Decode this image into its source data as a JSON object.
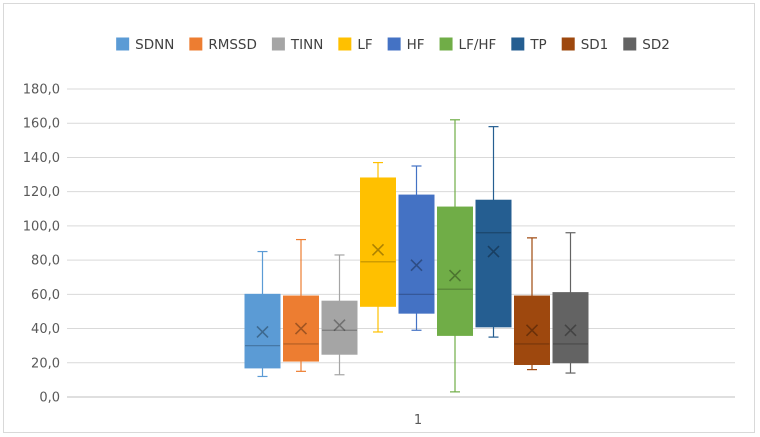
{
  "chart_data": {
    "type": "boxplot",
    "categories": [
      "1"
    ],
    "ylim": [
      0,
      180
    ],
    "ytick_step": 20,
    "ytick_labels": [
      "0,0",
      "20,0",
      "40,0",
      "60,0",
      "80,0",
      "100,0",
      "120,0",
      "140,0",
      "160,0",
      "180,0"
    ],
    "legend_position": "top",
    "grid": true,
    "series": [
      {
        "name": "SDNN",
        "color": "#5b9bd5",
        "min": 12,
        "q1": 17,
        "median": 30,
        "q3": 60,
        "max": 85,
        "mean": 38
      },
      {
        "name": "RMSSD",
        "color": "#ed7d31",
        "min": 15,
        "q1": 21,
        "median": 31,
        "q3": 59,
        "max": 92,
        "mean": 40
      },
      {
        "name": "TINN",
        "color": "#a5a5a5",
        "min": 13,
        "q1": 25,
        "median": 39,
        "q3": 56,
        "max": 83,
        "mean": 42
      },
      {
        "name": "LF",
        "color": "#ffc000",
        "min": 38,
        "q1": 53,
        "median": 79,
        "q3": 128,
        "max": 137,
        "mean": 86
      },
      {
        "name": "HF",
        "color": "#4472c4",
        "min": 39,
        "q1": 49,
        "median": 60,
        "q3": 118,
        "max": 135,
        "mean": 77
      },
      {
        "name": "LF/HF",
        "color": "#70ad47",
        "min": 3,
        "q1": 36,
        "median": 63,
        "q3": 111,
        "max": 162,
        "mean": 71
      },
      {
        "name": "TP",
        "color": "#255e91",
        "min": 35,
        "q1": 41,
        "median": 96,
        "q3": 115,
        "max": 158,
        "mean": 85
      },
      {
        "name": "SD1",
        "color": "#9e480e",
        "min": 16,
        "q1": 19,
        "median": 31,
        "q3": 59,
        "max": 93,
        "mean": 39
      },
      {
        "name": "SD2",
        "color": "#636363",
        "min": 14,
        "q1": 20,
        "median": 31,
        "q3": 61,
        "max": 96,
        "mean": 39
      }
    ]
  }
}
